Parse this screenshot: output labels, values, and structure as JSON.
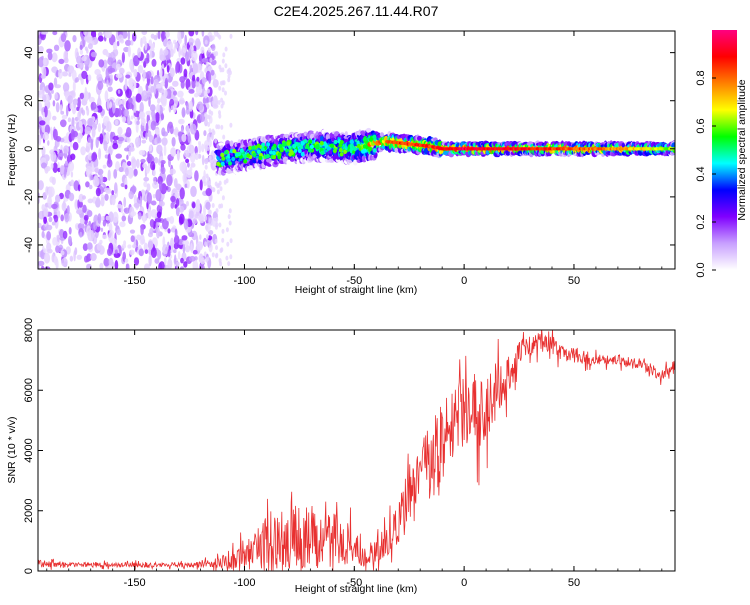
{
  "chart_data": [
    {
      "type": "heatmap",
      "title": "C2E4.2025.267.11.44.R07",
      "xlabel": "Height of straight line (km)",
      "ylabel": "Frequency (Hz)",
      "xlim": [
        -194,
        96
      ],
      "ylim": [
        -50,
        49
      ],
      "xticks": [
        -150,
        -100,
        -50,
        0,
        50
      ],
      "yticks": [
        -40,
        -20,
        0,
        20,
        40
      ],
      "xtick_labels": [
        "-150",
        "-100",
        "-50",
        "0",
        "50"
      ],
      "ytick_labels": [
        "-40",
        "-20",
        "0",
        "20",
        "40"
      ],
      "colorbar": {
        "label": "Normalized spectral amplitude",
        "range": [
          0,
          1
        ],
        "ticks": [
          0.0,
          0.2,
          0.4,
          0.6,
          0.8
        ],
        "tick_labels": [
          "0.0",
          "0.2",
          "0.4",
          "0.6",
          "0.8"
        ],
        "colors": [
          "#ffffff",
          "#c8a0ff",
          "#8000ff",
          "#0000ff",
          "#00ffff",
          "#00ff00",
          "#ffff00",
          "#ff8000",
          "#ff0000",
          "#ff0080"
        ]
      },
      "ridge": {
        "x": [
          -112,
          -100,
          -90,
          -80,
          -70,
          -60,
          -50,
          -42,
          -35,
          -25,
          -15,
          -10,
          -5,
          0,
          10,
          20,
          40,
          60,
          80,
          96
        ],
        "freq": [
          -4,
          -3,
          -1,
          0,
          1,
          1,
          0,
          2,
          3,
          2,
          1,
          0,
          0,
          0,
          0,
          0,
          0,
          0,
          0,
          0
        ],
        "amplitude": [
          0.35,
          0.4,
          0.45,
          0.45,
          0.45,
          0.5,
          0.6,
          0.75,
          0.85,
          0.85,
          0.85,
          0.9,
          0.9,
          0.95,
          0.9,
          0.9,
          0.85,
          0.8,
          0.7,
          0.6
        ]
      },
      "noise_region": {
        "x_range": [
          -194,
          -113
        ],
        "freq_range": [
          -50,
          49
        ],
        "amplitude": "0.05-0.2"
      }
    },
    {
      "type": "line",
      "xlabel": "Height of straight line (km)",
      "ylabel": "SNR (10 * v/v)",
      "xlim": [
        -194,
        96
      ],
      "ylim": [
        0,
        8000
      ],
      "xticks": [
        -150,
        -100,
        -50,
        0,
        50
      ],
      "yticks": [
        0,
        2000,
        4000,
        6000,
        8000
      ],
      "xtick_labels": [
        "-150",
        "-100",
        "-50",
        "0",
        "50"
      ],
      "ytick_labels": [
        "0",
        "2000",
        "4000",
        "6000",
        "8000"
      ],
      "color": "#e83030",
      "series": [
        {
          "name": "SNR",
          "x": [
            -194,
            -180,
            -160,
            -140,
            -125,
            -115,
            -105,
            -100,
            -95,
            -88,
            -80,
            -75,
            -70,
            -65,
            -60,
            -55,
            -50,
            -45,
            -40,
            -35,
            -30,
            -25,
            -20,
            -15,
            -10,
            -5,
            0,
            5,
            10,
            15,
            20,
            25,
            30,
            35,
            40,
            45,
            50,
            55,
            60,
            65,
            70,
            75,
            80,
            85,
            90,
            96
          ],
          "y": [
            250,
            200,
            200,
            200,
            200,
            250,
            350,
            500,
            700,
            1000,
            1200,
            1100,
            1050,
            1000,
            1000,
            950,
            700,
            500,
            600,
            900,
            1600,
            2600,
            3300,
            3600,
            4100,
            5000,
            5300,
            5400,
            5000,
            6200,
            6400,
            7300,
            7500,
            7600,
            7500,
            7200,
            7200,
            7100,
            7000,
            7000,
            7050,
            6900,
            6900,
            6700,
            6500,
            6800
          ],
          "noise_amplitude": [
            150,
            100,
            100,
            100,
            100,
            150,
            400,
            600,
            900,
            1300,
            1500,
            1300,
            1300,
            1200,
            1200,
            1100,
            700,
            500,
            500,
            700,
            1000,
            1200,
            1200,
            1600,
            2000,
            1500,
            1400,
            1500,
            1600,
            1200,
            900,
            500,
            400,
            400,
            400,
            350,
            300,
            300,
            250,
            250,
            250,
            250,
            250,
            250,
            250,
            250
          ]
        }
      ]
    }
  ]
}
